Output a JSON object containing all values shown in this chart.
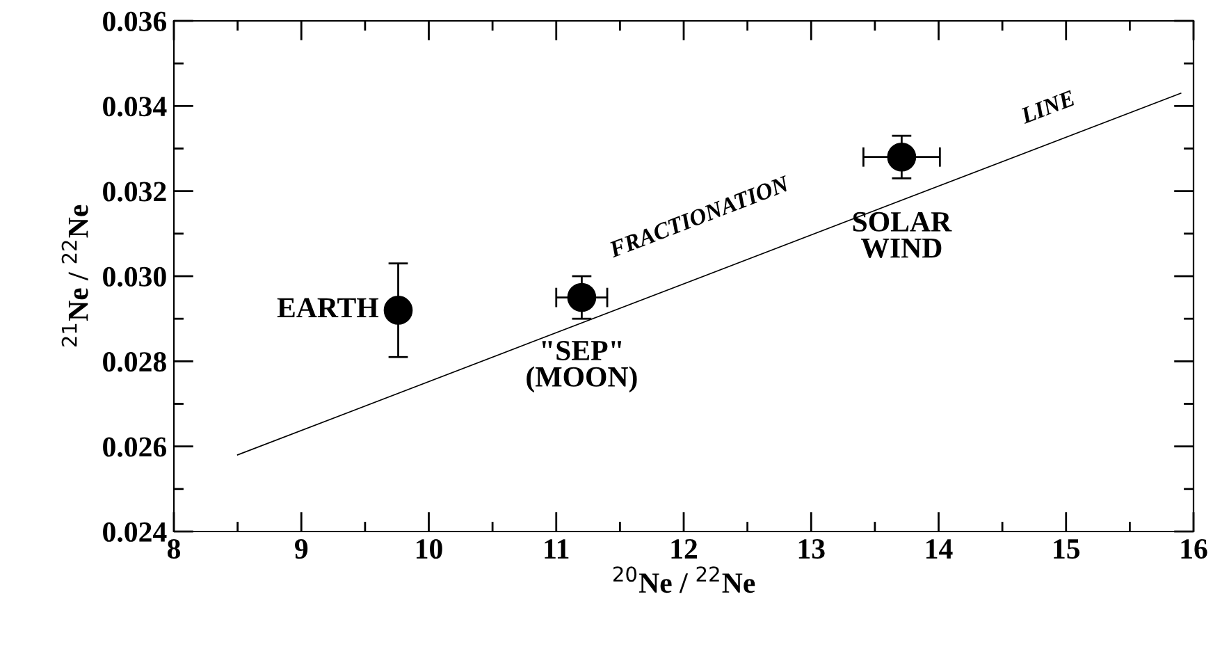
{
  "chart_data": {
    "type": "scatter",
    "xlabel": "$^{20}$Ne / $^{22}$Ne",
    "ylabel": "$^{21}$Ne / $^{22}$Ne",
    "xlim": [
      8,
      16
    ],
    "ylim": [
      0.024,
      0.036
    ],
    "xticks": [
      8,
      {
        "value": 8.5,
        "label": null
      },
      9,
      {
        "value": 9.5,
        "label": null
      },
      10,
      {
        "value": 10.5,
        "label": null
      },
      11,
      {
        "value": 11.5,
        "label": null
      },
      12,
      {
        "value": 12.5,
        "label": null
      },
      13,
      {
        "value": 13.5,
        "label": null
      },
      14,
      {
        "value": 14.5,
        "label": null
      },
      15,
      {
        "value": 15.5,
        "label": null
      },
      16
    ],
    "yticks": [
      {
        "value": 0.024,
        "label": "0.024"
      },
      {
        "value": 0.025,
        "label": null
      },
      {
        "value": 0.026,
        "label": "0.026"
      },
      {
        "value": 0.027,
        "label": null
      },
      {
        "value": 0.028,
        "label": "0.028"
      },
      {
        "value": 0.029,
        "label": null
      },
      {
        "value": 0.03,
        "label": "0.030"
      },
      {
        "value": 0.031,
        "label": null
      },
      {
        "value": 0.032,
        "label": "0.032"
      },
      {
        "value": 0.033,
        "label": null
      },
      {
        "value": 0.034,
        "label": "0.034"
      },
      {
        "value": 0.035,
        "label": null
      },
      {
        "value": 0.036,
        "label": "0.036"
      }
    ],
    "grid": false,
    "legend": false,
    "marker": "circle",
    "series": [
      {
        "color": "#000000",
        "x": [
          9.76,
          11.2,
          13.71
        ],
        "values": [
          0.0292,
          0.0295,
          0.0328
        ],
        "errors": [
          [
            0.0281,
            0.0303
          ],
          0.0005,
          0.0005
        ],
        "xerrors": [
          null,
          0.2,
          0.3
        ]
      },
      {
        "type": "line",
        "color": "#000000",
        "marker": "none",
        "line_style": "solid",
        "x": [
          8.5,
          15.9
        ],
        "values": [
          0.0258,
          0.0343
        ]
      }
    ],
    "annotations": [
      {
        "text": "EARTH",
        "x": 9.76,
        "y": 0.0292
      },
      {
        "text": "\"SEP\"\n(MOON)",
        "x": 11.2,
        "y": 0.0295
      },
      {
        "text": "SOLAR\nWIND",
        "x": 13.71,
        "y": 0.0328
      },
      "FRACTIONATION",
      "LINE"
    ]
  }
}
